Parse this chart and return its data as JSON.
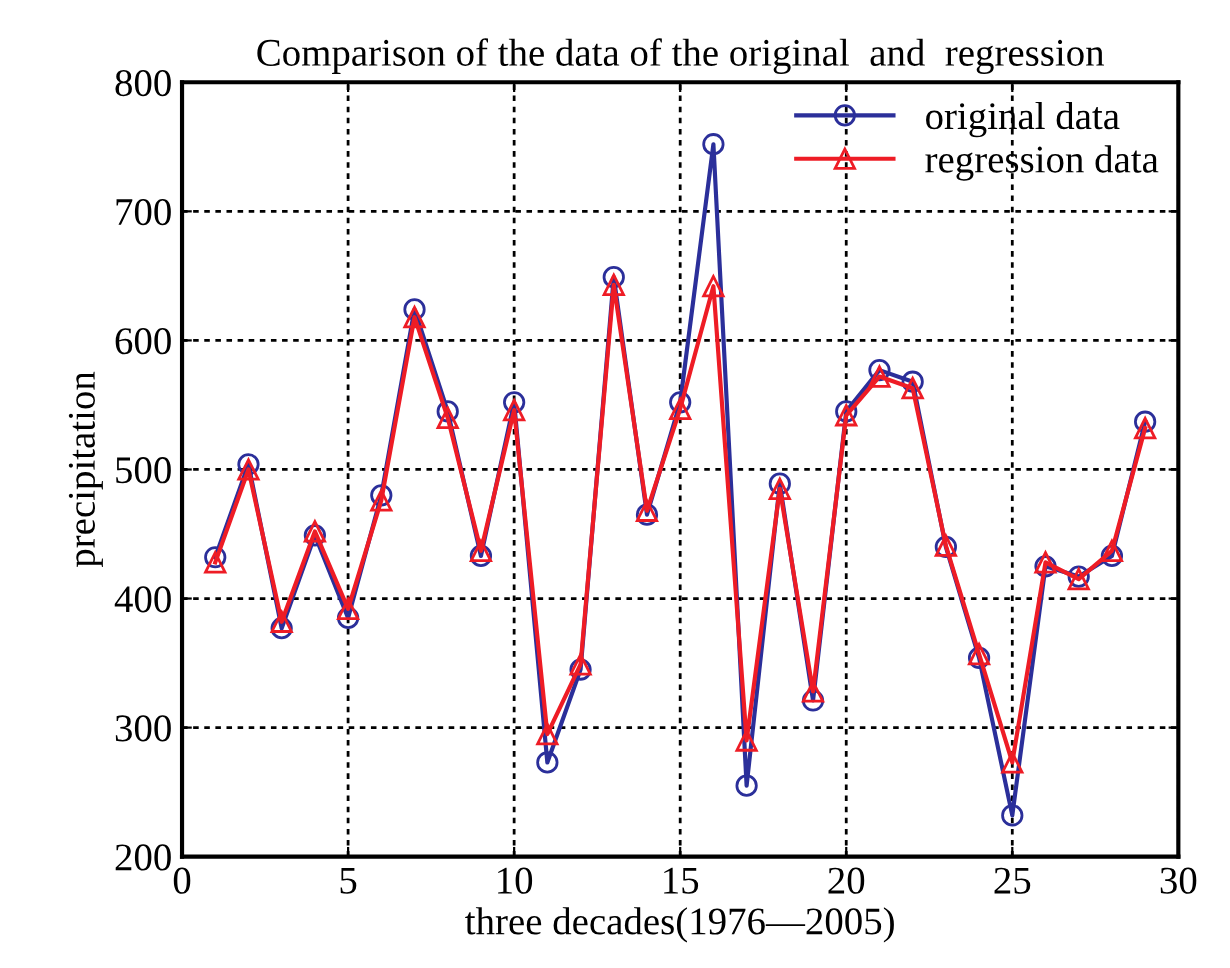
{
  "chart_data": {
    "type": "line",
    "title": "Comparison of the data of the original  and  regression",
    "xlabel": "three decades(1976—2005)",
    "ylabel": "precipitation",
    "x": [
      1,
      2,
      3,
      4,
      5,
      6,
      7,
      8,
      9,
      10,
      11,
      12,
      13,
      14,
      15,
      16,
      17,
      18,
      19,
      20,
      21,
      22,
      23,
      24,
      25,
      26,
      27,
      28,
      29
    ],
    "series": [
      {
        "name": "original data",
        "color": "#2b2f9a",
        "marker": "circle",
        "values": [
          432,
          504,
          377,
          449,
          385,
          480,
          624,
          545,
          433,
          552,
          273,
          345,
          649,
          465,
          552,
          752,
          255,
          489,
          321,
          545,
          577,
          568,
          440,
          354,
          232,
          425,
          417,
          433,
          537
        ]
      },
      {
        "name": "regression data",
        "color": "#ee1c25",
        "marker": "triangle",
        "values": [
          428,
          500,
          382,
          452,
          392,
          476,
          618,
          540,
          437,
          546,
          295,
          349,
          643,
          468,
          547,
          642,
          290,
          485,
          328,
          542,
          572,
          563,
          441,
          357,
          273,
          428,
          415,
          437,
          532
        ]
      }
    ],
    "xlim": [
      0,
      30
    ],
    "xticks": [
      0,
      5,
      10,
      15,
      20,
      25,
      30
    ],
    "ylim": [
      200,
      800
    ],
    "yticks": [
      200,
      300,
      400,
      500,
      600,
      700,
      800
    ],
    "grid": true,
    "legend": "top right",
    "line_style": "solid"
  }
}
